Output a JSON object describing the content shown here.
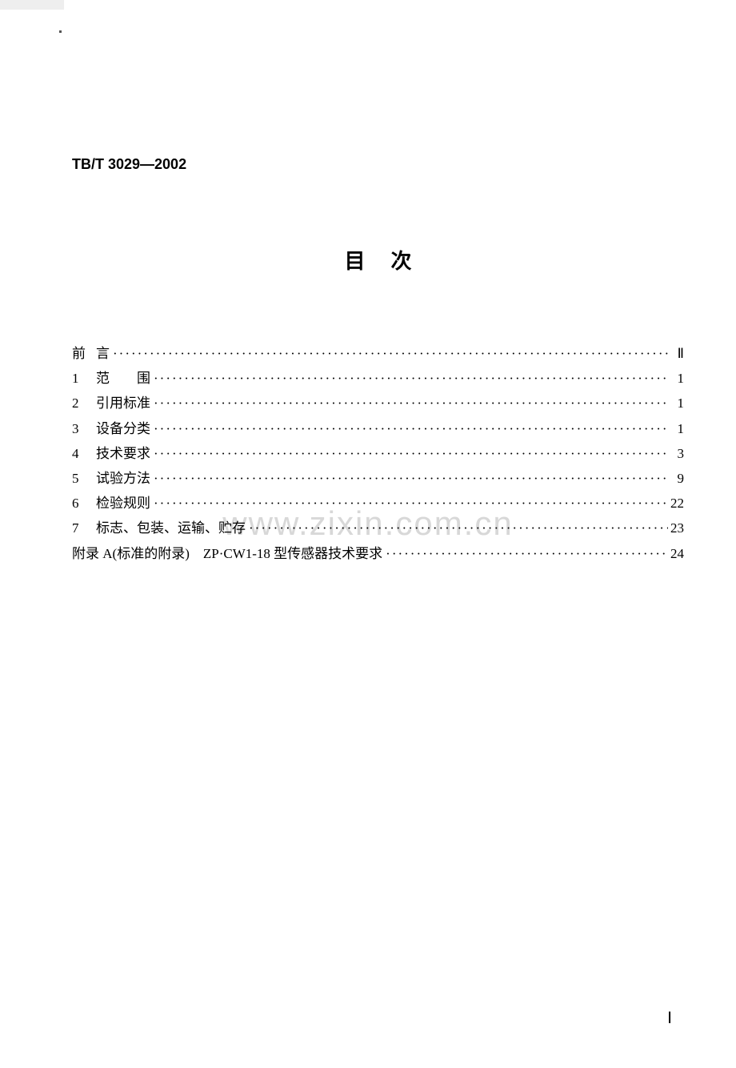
{
  "standard_code": "TB/T 3029—2002",
  "title": "目次",
  "toc": {
    "preface": {
      "label_a": "前",
      "label_b": "言",
      "page": "Ⅱ"
    },
    "items": [
      {
        "num": "1",
        "label": "范　　围",
        "page": "1"
      },
      {
        "num": "2",
        "label": "引用标准",
        "page": "1"
      },
      {
        "num": "3",
        "label": "设备分类",
        "page": "1"
      },
      {
        "num": "4",
        "label": "技术要求",
        "page": "3"
      },
      {
        "num": "5",
        "label": "试验方法",
        "page": "9"
      },
      {
        "num": "6",
        "label": "检验规则",
        "page": "22"
      },
      {
        "num": "7",
        "label": "标志、包装、运输、贮存",
        "page": "23"
      }
    ],
    "appendix": {
      "label": "附录 A(标准的附录)　ZP·CW1-18 型传感器技术要求",
      "page": "24"
    }
  },
  "watermark": "www.zixin.com.cn",
  "page_number": "Ⅰ"
}
